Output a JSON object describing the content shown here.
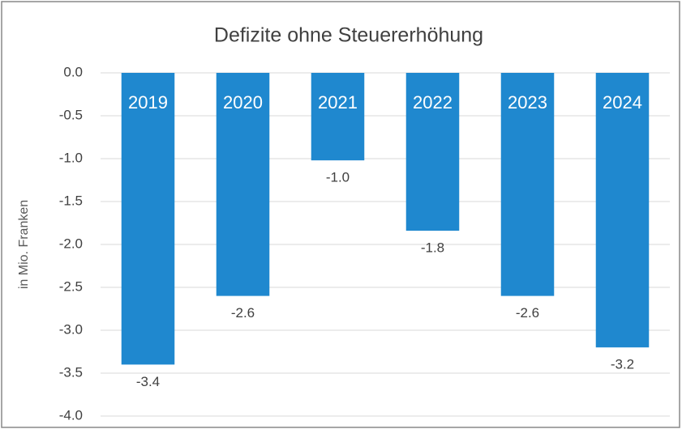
{
  "chart_data": {
    "type": "bar",
    "title": "Defizite ohne Steuererhöhung",
    "y_label": "in Mio. Franken",
    "categories": [
      "2019",
      "2020",
      "2021",
      "2022",
      "2023",
      "2024"
    ],
    "values": [
      -3.4,
      -2.6,
      -1.02,
      -1.84,
      -2.6,
      -3.2
    ],
    "value_labels": [
      "-3.4",
      "-2.6",
      "-1.0",
      "-1.8",
      "-2.6",
      "-3.2"
    ],
    "color": "#1f88cf",
    "ylim": [
      -4,
      0
    ],
    "yticks": [
      {
        "value": 0,
        "label": "0.0"
      },
      -0.5,
      {
        "value": -1,
        "label": "-1.0"
      },
      -1.5,
      {
        "value": -2,
        "label": "-2.0"
      },
      -2.5,
      {
        "value": -3,
        "label": "-3.0"
      },
      -3.5,
      {
        "value": -4,
        "label": "-4.0"
      }
    ],
    "grid": true
  }
}
